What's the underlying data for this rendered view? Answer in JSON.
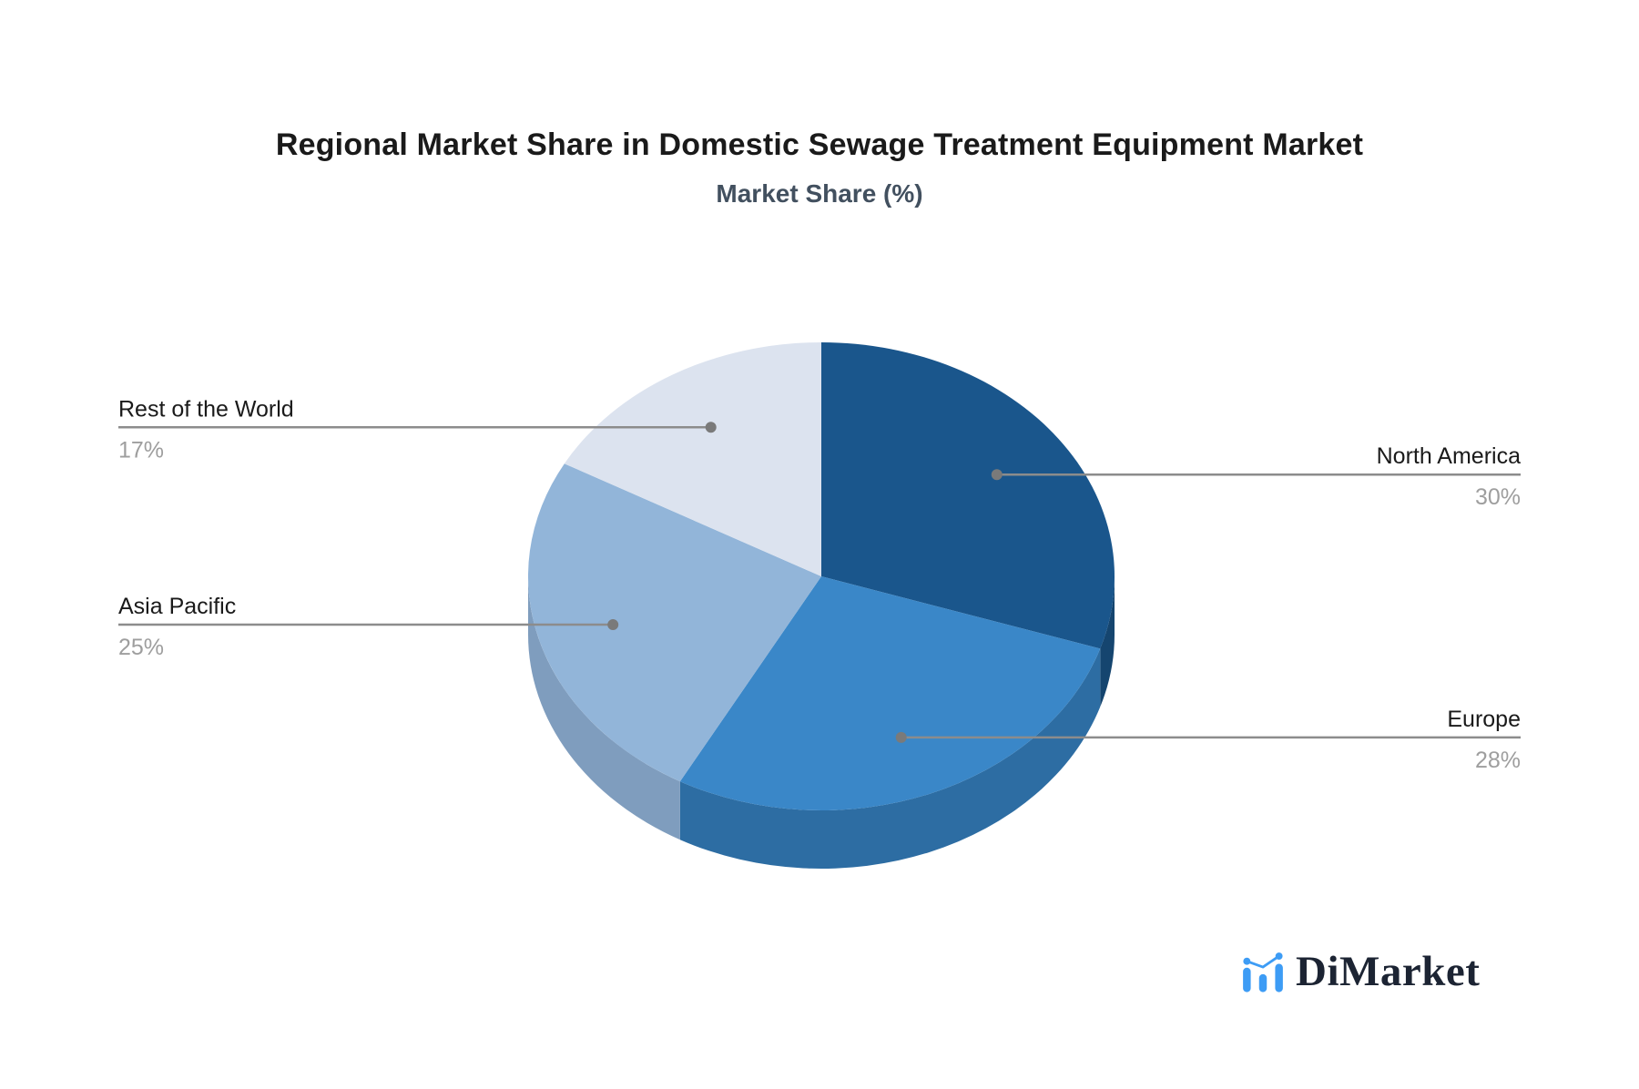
{
  "title": "Regional Market Share in Domestic Sewage Treatment Equipment Market",
  "subtitle": "Market Share (%)",
  "chart_data": {
    "type": "pie",
    "style": "3d-depth",
    "title": "Regional Market Share in Domestic Sewage Treatment Equipment Market",
    "subtitle": "Market Share (%)",
    "unit": "%",
    "start_angle": "12-o-clock",
    "direction": "clockwise",
    "legend_position": "none",
    "slices": [
      {
        "label": "North America",
        "value": 30,
        "display": "30%",
        "color": "#1A568C",
        "depth_color": "#15456F",
        "label_side": "right"
      },
      {
        "label": "Europe",
        "value": 28,
        "display": "28%",
        "color": "#3A87C8",
        "depth_color": "#2D6DA3",
        "label_side": "right"
      },
      {
        "label": "Asia Pacific",
        "value": 25,
        "display": "25%",
        "color": "#92B5D9",
        "depth_color": "#7F9DBE",
        "label_side": "left"
      },
      {
        "label": "Rest of the World",
        "value": 17,
        "display": "17%",
        "color": "#DCE3EF",
        "depth_color": "#8DA3BD",
        "label_side": "left"
      }
    ]
  },
  "colors": {
    "background": "#FFFFFF",
    "title_text": "#1A1A1A",
    "subtitle_text": "#42505F",
    "label_text": "#1A1A1A",
    "value_text": "#9E9E9E",
    "leader_line": "#8C8C8C",
    "leader_dot": "#7A7A7A"
  },
  "branding": {
    "logo_text": "DiMarket",
    "logo_icon": "bar-line-chart-icon",
    "icon_color": "#3D9CF5",
    "text_color": "#1C2433"
  }
}
